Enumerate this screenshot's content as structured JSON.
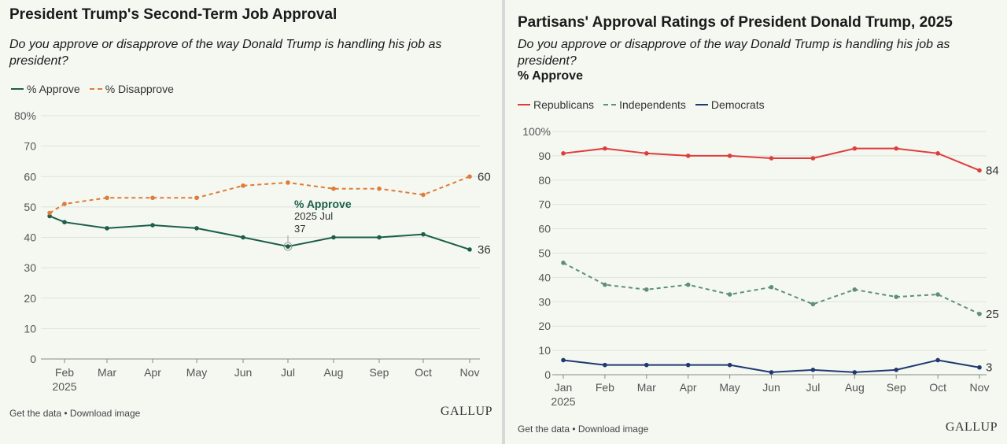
{
  "left": {
    "title": "President Trump's Second-Term Job Approval",
    "subtitle": "Do you approve or disapprove of the way Donald Trump is handling his job as president?",
    "legend": [
      {
        "label": "% Approve",
        "color": "#1b5e4a",
        "dashed": false
      },
      {
        "label": "% Disapprove",
        "color": "#e07b39",
        "dashed": true
      }
    ],
    "tooltip": {
      "series": "% Approve",
      "date": "2025 Jul",
      "value": "37"
    },
    "footer": {
      "get_data": "Get the data",
      "separator": " • ",
      "download": "Download image"
    },
    "logo": "GALLUP"
  },
  "right": {
    "title": "Partisans' Approval Ratings of President Donald Trump, 2025",
    "subtitle": "Do you approve or disapprove of the way Donald Trump is handling his job as president?",
    "measure": "% Approve",
    "legend": [
      {
        "label": "Republicans",
        "color": "#e03c3c",
        "dashed": false
      },
      {
        "label": "Independents",
        "color": "#5f8f7b",
        "dashed": true
      },
      {
        "label": "Democrats",
        "color": "#1f3a73",
        "dashed": false
      }
    ],
    "footer": {
      "get_data": "Get the data",
      "separator": " • ",
      "download": "Download image"
    },
    "logo": "GALLUP"
  },
  "chart_data": [
    {
      "type": "line",
      "title": "President Trump's Second-Term Job Approval",
      "x_ticks": [
        "Feb",
        "Mar",
        "Apr",
        "May",
        "Jun",
        "Jul",
        "Aug",
        "Sep",
        "Oct",
        "Nov"
      ],
      "x_year_label": "2025",
      "ylim": [
        0,
        80
      ],
      "y_ticks": [
        "0",
        "10",
        "20",
        "30",
        "40",
        "50",
        "60",
        "70",
        "80%"
      ],
      "grid": true,
      "legend_position": "top-left",
      "series": [
        {
          "name": "% Approve",
          "color": "#1b5e4a",
          "dashed": false,
          "x": [
            0.65,
            1.0,
            2.0,
            3.0,
            4.0,
            5.0,
            6.0,
            7.0,
            8.0,
            9.0,
            10.0
          ],
          "values": [
            47,
            45,
            43,
            44,
            43,
            40,
            37,
            40,
            40,
            41,
            36
          ],
          "end_label": "36"
        },
        {
          "name": "% Disapprove",
          "color": "#e07b39",
          "dashed": true,
          "x": [
            0.65,
            1.0,
            2.0,
            3.0,
            4.0,
            5.0,
            6.0,
            7.0,
            8.0,
            9.0,
            10.0
          ],
          "values": [
            48,
            51,
            53,
            53,
            53,
            57,
            58,
            56,
            56,
            54,
            60
          ],
          "end_label": "60"
        }
      ]
    },
    {
      "type": "line",
      "title": "Partisans' Approval Ratings of President Donald Trump, 2025",
      "categories": [
        "Jan",
        "Feb",
        "Mar",
        "Apr",
        "May",
        "Jun",
        "Jul",
        "Aug",
        "Sep",
        "Oct",
        "Nov"
      ],
      "x_year_label": "2025",
      "ylim": [
        0,
        100
      ],
      "y_ticks": [
        "0",
        "10",
        "20",
        "30",
        "40",
        "50",
        "60",
        "70",
        "80",
        "90",
        "100%"
      ],
      "grid": true,
      "legend_position": "top-left",
      "series": [
        {
          "name": "Republicans",
          "color": "#e03c3c",
          "dashed": false,
          "values": [
            91,
            93,
            91,
            90,
            90,
            89,
            89,
            93,
            93,
            91,
            84
          ],
          "end_label": "84"
        },
        {
          "name": "Independents",
          "color": "#5f8f7b",
          "dashed": true,
          "values": [
            46,
            37,
            35,
            37,
            33,
            36,
            29,
            35,
            32,
            33,
            25
          ],
          "end_label": "25"
        },
        {
          "name": "Democrats",
          "color": "#1f3a73",
          "dashed": false,
          "values": [
            6,
            4,
            4,
            4,
            4,
            1,
            2,
            1,
            2,
            6,
            3
          ],
          "end_label": "3"
        }
      ]
    }
  ]
}
